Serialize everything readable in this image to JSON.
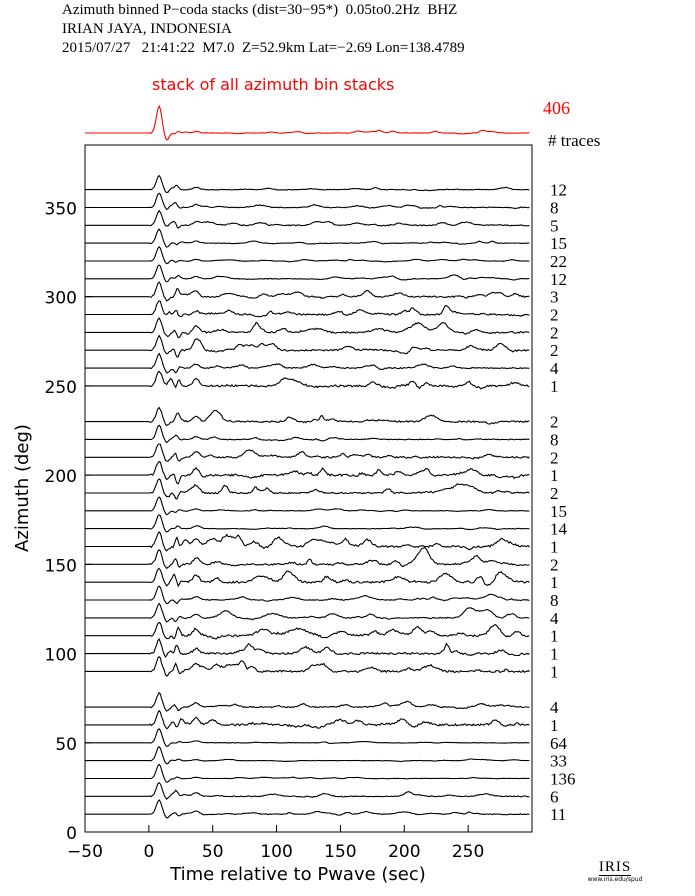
{
  "header": {
    "line1": "Azimuth binned P−coda stacks (dist=30−95*)  0.05to0.2Hz  BHZ",
    "line2": "IRIAN JAYA, INDONESIA",
    "line3": "2015/07/27   21:41:22  M7.0  Z=52.9km Lat=−2.69 Lon=138.4789"
  },
  "summary": {
    "title": "stack of all azimuth bin stacks",
    "total_traces": "406",
    "count_header": "# traces",
    "color": "#ff0000"
  },
  "logo": {
    "name": "IRIS",
    "url": "www.iris.edu/spud"
  },
  "chart_data": {
    "type": "line",
    "xlabel": "Time relative to Pwave (sec)",
    "ylabel": "Azimuth (deg)",
    "xlim": [
      -50,
      300
    ],
    "ylim": [
      0,
      385
    ],
    "xticks": [
      -50,
      0,
      50,
      100,
      150,
      200,
      250
    ],
    "yticks": [
      0,
      50,
      100,
      150,
      200,
      250,
      300,
      350
    ],
    "series": [
      {
        "azimuth": 360,
        "count": "12"
      },
      {
        "azimuth": 350,
        "count": "8"
      },
      {
        "azimuth": 340,
        "count": "5"
      },
      {
        "azimuth": 330,
        "count": "15"
      },
      {
        "azimuth": 320,
        "count": "22"
      },
      {
        "azimuth": 310,
        "count": "12"
      },
      {
        "azimuth": 300,
        "count": "3"
      },
      {
        "azimuth": 290,
        "count": "2"
      },
      {
        "azimuth": 280,
        "count": "2"
      },
      {
        "azimuth": 270,
        "count": "2"
      },
      {
        "azimuth": 260,
        "count": "4"
      },
      {
        "azimuth": 250,
        "count": "1"
      },
      {
        "azimuth": 230,
        "count": "2"
      },
      {
        "azimuth": 220,
        "count": "8"
      },
      {
        "azimuth": 210,
        "count": "2"
      },
      {
        "azimuth": 200,
        "count": "1"
      },
      {
        "azimuth": 190,
        "count": "2"
      },
      {
        "azimuth": 180,
        "count": "15"
      },
      {
        "azimuth": 170,
        "count": "14"
      },
      {
        "azimuth": 160,
        "count": "1"
      },
      {
        "azimuth": 150,
        "count": "2"
      },
      {
        "azimuth": 140,
        "count": "1"
      },
      {
        "azimuth": 130,
        "count": "8"
      },
      {
        "azimuth": 120,
        "count": "4"
      },
      {
        "azimuth": 110,
        "count": "1"
      },
      {
        "azimuth": 100,
        "count": "1"
      },
      {
        "azimuth": 90,
        "count": "1"
      },
      {
        "azimuth": 70,
        "count": "4"
      },
      {
        "azimuth": 60,
        "count": "1"
      },
      {
        "azimuth": 50,
        "count": "64"
      },
      {
        "azimuth": 40,
        "count": "33"
      },
      {
        "azimuth": 30,
        "count": "136"
      },
      {
        "azimuth": 20,
        "count": "6"
      },
      {
        "azimuth": 10,
        "count": "11"
      }
    ]
  }
}
